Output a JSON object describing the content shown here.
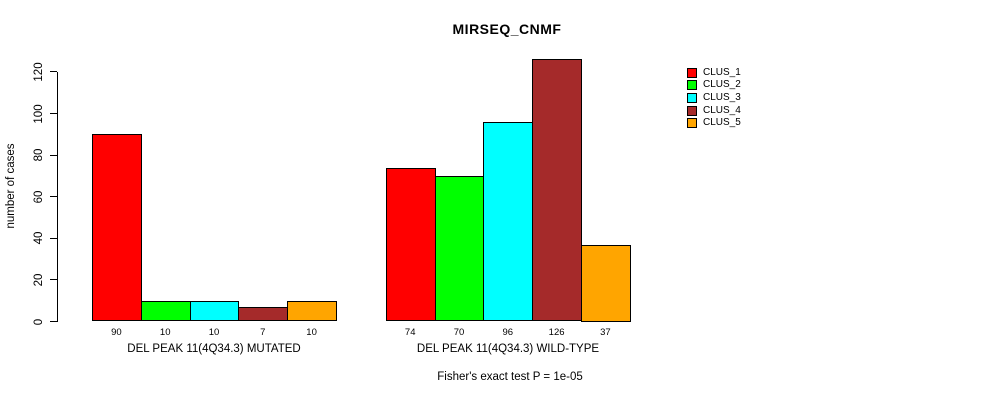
{
  "chart_data": {
    "type": "bar",
    "title": "MIRSEQ_CNMF",
    "ylabel": "number of cases",
    "xlabel": "",
    "yticks": [
      0,
      20,
      40,
      60,
      80,
      100,
      120
    ],
    "ylim": [
      0,
      126
    ],
    "grid": false,
    "legend_position": "right",
    "background_color": "#ffffff",
    "categories": [
      "DEL PEAK 11(4Q34.3) MUTATED",
      "DEL PEAK 11(4Q34.3) WILD-TYPE"
    ],
    "series": [
      {
        "name": "CLUS_1",
        "color": "#ff0000",
        "values": [
          90,
          74
        ]
      },
      {
        "name": "CLUS_2",
        "color": "#00ff00",
        "values": [
          10,
          70
        ]
      },
      {
        "name": "CLUS_3",
        "color": "#00ffff",
        "values": [
          10,
          96
        ]
      },
      {
        "name": "CLUS_4",
        "color": "#a52a2a",
        "values": [
          7,
          126
        ]
      },
      {
        "name": "CLUS_5",
        "color": "#ffa500",
        "values": [
          10,
          37
        ]
      }
    ],
    "bar_value_labels_shown": true,
    "footnote": "Fisher's exact test P = 1e-05"
  }
}
